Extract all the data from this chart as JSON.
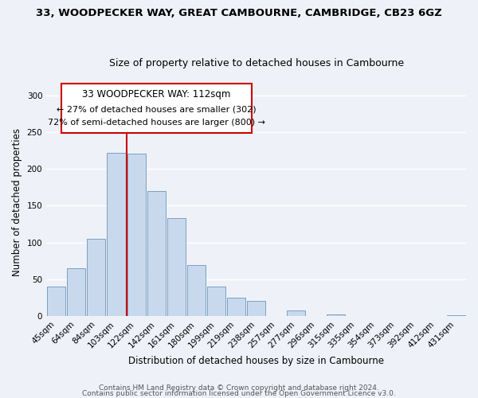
{
  "title_line1": "33, WOODPECKER WAY, GREAT CAMBOURNE, CAMBRIDGE, CB23 6GZ",
  "title_line2": "Size of property relative to detached houses in Cambourne",
  "xlabel": "Distribution of detached houses by size in Cambourne",
  "ylabel": "Number of detached properties",
  "bar_labels": [
    "45sqm",
    "64sqm",
    "84sqm",
    "103sqm",
    "122sqm",
    "142sqm",
    "161sqm",
    "180sqm",
    "199sqm",
    "219sqm",
    "238sqm",
    "257sqm",
    "277sqm",
    "296sqm",
    "315sqm",
    "335sqm",
    "354sqm",
    "373sqm",
    "392sqm",
    "412sqm",
    "431sqm"
  ],
  "bar_values": [
    40,
    65,
    105,
    222,
    221,
    170,
    133,
    69,
    40,
    25,
    20,
    0,
    8,
    0,
    2,
    0,
    0,
    0,
    0,
    0,
    1
  ],
  "bar_color": "#c9d9ed",
  "bar_edge_color": "#7a9fc2",
  "vline_color": "#cc0000",
  "vline_x": 3.5,
  "annotation_line1": "33 WOODPECKER WAY: 112sqm",
  "annotation_line2": "← 27% of detached houses are smaller (302)",
  "annotation_line3": "72% of semi-detached houses are larger (800) →",
  "ylim": [
    0,
    310
  ],
  "yticks": [
    0,
    50,
    100,
    150,
    200,
    250,
    300
  ],
  "footer_line1": "Contains HM Land Registry data © Crown copyright and database right 2024.",
  "footer_line2": "Contains public sector information licensed under the Open Government Licence v3.0.",
  "bg_color": "#eef2f8",
  "plot_bg_color": "#eef2f8",
  "grid_color": "#ffffff",
  "title_fontsize": 9.5,
  "subtitle_fontsize": 9,
  "axis_label_fontsize": 8.5,
  "tick_fontsize": 7.5,
  "annotation_fontsize": 8,
  "footer_fontsize": 6.5
}
